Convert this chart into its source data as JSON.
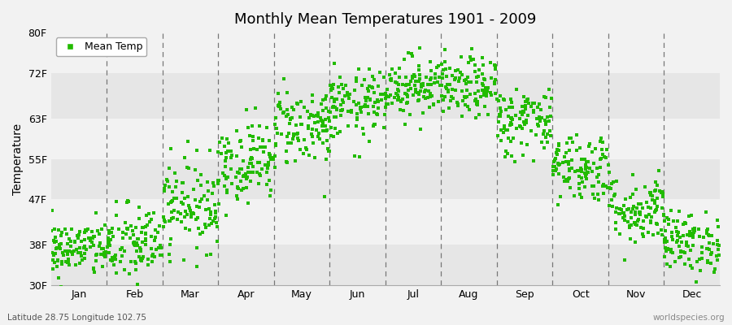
{
  "title": "Monthly Mean Temperatures 1901 - 2009",
  "ylabel": "Temperature",
  "bottom_left_text": "Latitude 28.75 Longitude 102.75",
  "bottom_right_text": "worldspecies.org",
  "legend_label": "Mean Temp",
  "dot_color": "#22bb00",
  "background_color": "#f2f2f2",
  "band_colors": [
    "#e6e6e6",
    "#f2f2f2"
  ],
  "ytick_labels": [
    "30F",
    "38F",
    "47F",
    "55F",
    "63F",
    "72F",
    "80F"
  ],
  "ytick_values": [
    30,
    38,
    47,
    55,
    63,
    72,
    80
  ],
  "months": [
    "Jan",
    "Feb",
    "Mar",
    "Apr",
    "May",
    "Jun",
    "Jul",
    "Aug",
    "Sep",
    "Oct",
    "Nov",
    "Dec"
  ],
  "mean_temps_by_month": [
    37.2,
    38.0,
    46.0,
    54.5,
    61.5,
    65.5,
    69.5,
    69.0,
    62.5,
    53.5,
    45.0,
    38.5
  ],
  "spread_by_month": [
    2.8,
    4.0,
    4.5,
    4.0,
    4.0,
    3.5,
    3.0,
    3.0,
    3.5,
    3.5,
    3.5,
    3.0
  ],
  "n_years": 109,
  "dot_size": 6
}
